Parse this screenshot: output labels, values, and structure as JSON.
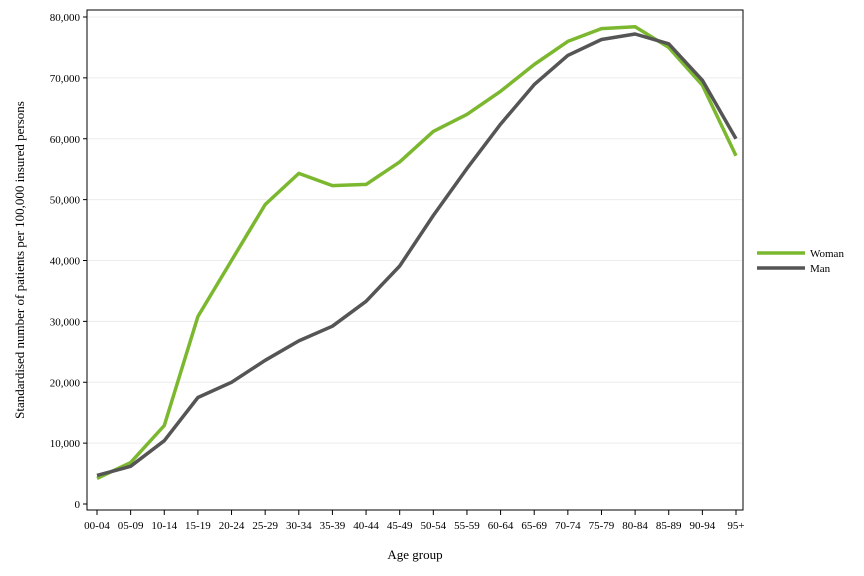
{
  "chart_data": {
    "type": "line",
    "title": "",
    "xlabel": "Age group",
    "ylabel": "Standardised number of patients per 100,000 insured persons",
    "categories": [
      "00-04",
      "05-09",
      "10-14",
      "15-19",
      "20-24",
      "25-29",
      "30-34",
      "35-39",
      "40-44",
      "45-49",
      "50-54",
      "55-59",
      "60-64",
      "65-69",
      "70-74",
      "75-79",
      "80-84",
      "85-89",
      "90-94",
      "95+"
    ],
    "ylim": [
      0,
      80000
    ],
    "yticks": [
      0,
      10000,
      20000,
      30000,
      40000,
      50000,
      60000,
      70000,
      80000
    ],
    "ytick_labels": [
      "0",
      "10,000",
      "20,000",
      "30,000",
      "40,000",
      "50,000",
      "60,000",
      "70,000",
      "80,000"
    ],
    "grid": true,
    "legend_position": "right",
    "series": [
      {
        "name": "Woman",
        "color": "#7cb82f",
        "values": [
          4200,
          6800,
          12900,
          30800,
          40000,
          49200,
          54300,
          52300,
          52500,
          56200,
          61200,
          64000,
          67800,
          72200,
          76000,
          78100,
          78400,
          75000,
          68800,
          57200
        ]
      },
      {
        "name": "Man",
        "color": "#555555",
        "values": [
          4700,
          6200,
          10400,
          17500,
          20000,
          23600,
          26800,
          29200,
          33300,
          39100,
          47400,
          55100,
          62400,
          68900,
          73700,
          76300,
          77200,
          75600,
          69600,
          60000
        ]
      }
    ]
  }
}
